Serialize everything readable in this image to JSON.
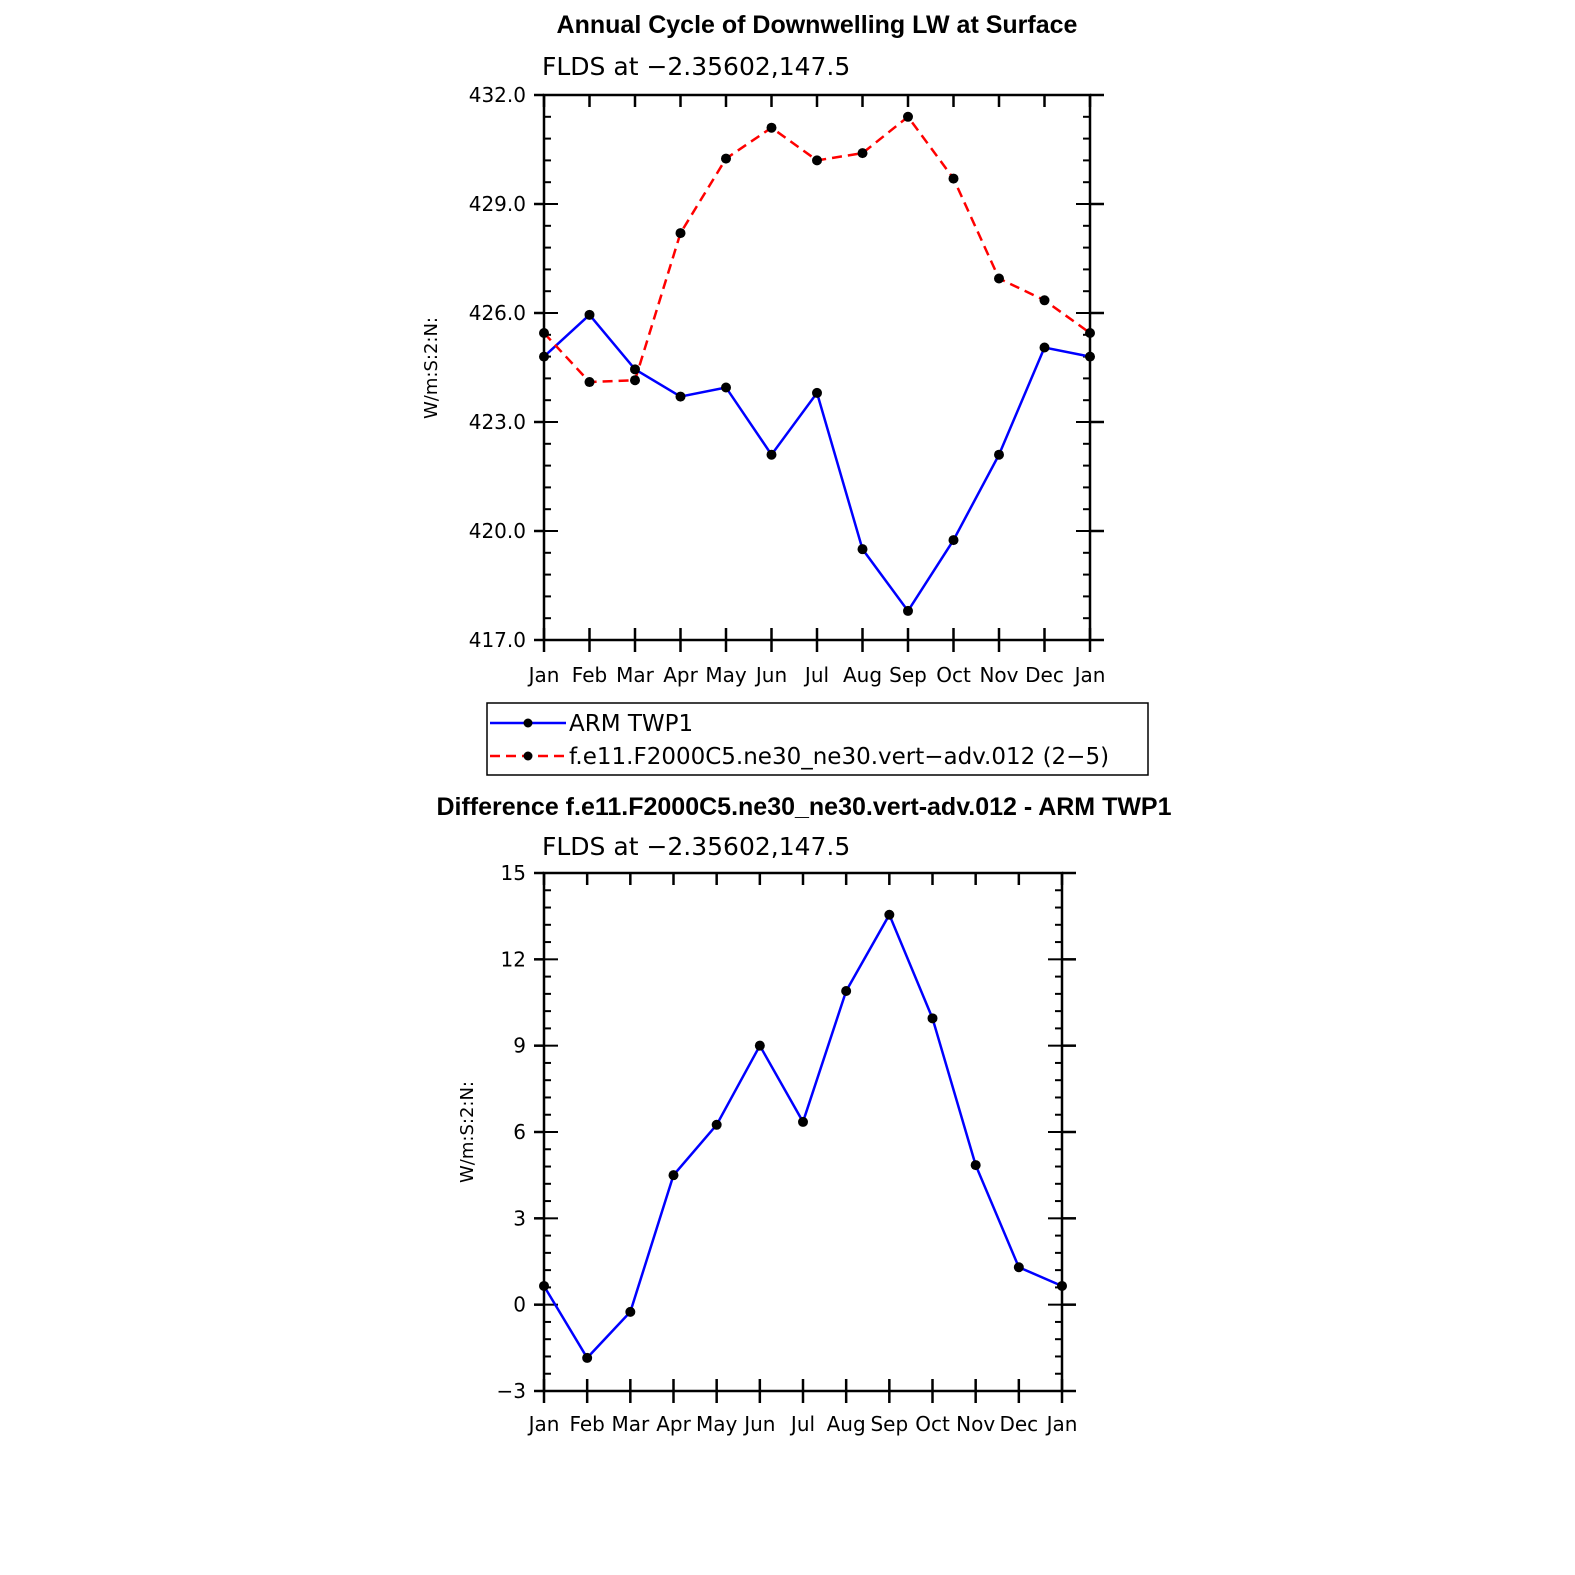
{
  "chart_data": [
    {
      "type": "line",
      "title": "Annual Cycle of Downwelling LW at Surface",
      "subtitle": "FLDS at −2.35602,147.5",
      "ylabel": "W/m:S:2:N:",
      "ylim": [
        417,
        432
      ],
      "yticks": [
        417,
        420,
        423,
        426,
        429,
        432
      ],
      "ytick_labels": [
        "417.0",
        "420.0",
        "423.0",
        "426.0",
        "429.0",
        "432.0"
      ],
      "categories": [
        "Jan",
        "Feb",
        "Mar",
        "Apr",
        "May",
        "Jun",
        "Jul",
        "Aug",
        "Sep",
        "Oct",
        "Nov",
        "Dec",
        "Jan"
      ],
      "legend": "below",
      "series": [
        {
          "name": "ARM TWP1",
          "color": "#0000ff",
          "dash": "solid",
          "values": [
            424.8,
            425.95,
            424.45,
            423.7,
            423.95,
            422.1,
            423.8,
            419.5,
            417.8,
            419.75,
            422.1,
            425.05,
            424.8
          ]
        },
        {
          "name": "f.e11.F2000C5.ne30_ne30.vert−adv.012 (2−5)",
          "color": "#ff0000",
          "dash": "dashed",
          "values": [
            425.45,
            424.1,
            424.15,
            428.2,
            430.25,
            431.1,
            430.2,
            430.4,
            431.4,
            429.7,
            426.95,
            426.35,
            425.45
          ]
        }
      ]
    },
    {
      "type": "line",
      "title": "Difference f.e11.F2000C5.ne30_ne30.vert-adv.012 - ARM TWP1",
      "subtitle": "FLDS at −2.35602,147.5",
      "ylabel": "W/m:S:2:N:",
      "ylim": [
        -3,
        15
      ],
      "yticks": [
        -3,
        0,
        3,
        6,
        9,
        12,
        15
      ],
      "ytick_labels": [
        "−3",
        "0",
        "3",
        "6",
        "9",
        "12",
        "15"
      ],
      "categories": [
        "Jan",
        "Feb",
        "Mar",
        "Apr",
        "May",
        "Jun",
        "Jul",
        "Aug",
        "Sep",
        "Oct",
        "Nov",
        "Dec",
        "Jan"
      ],
      "series": [
        {
          "color": "#0000ff",
          "dash": "solid",
          "values": [
            0.65,
            -1.85,
            -0.25,
            4.5,
            6.25,
            9.0,
            6.35,
            10.9,
            13.55,
            9.95,
            4.85,
            1.3,
            0.65
          ]
        }
      ]
    }
  ]
}
